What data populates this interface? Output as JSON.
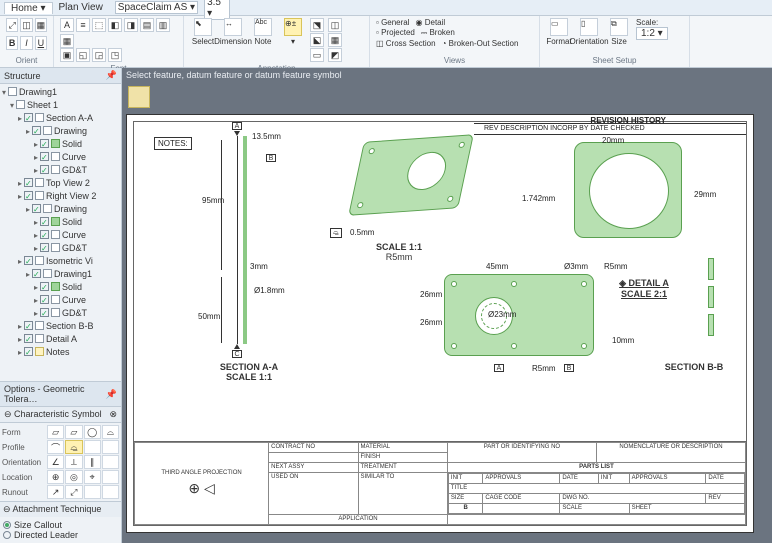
{
  "titlebar": {
    "home": "Home",
    "planview": "Plan View",
    "font_family": "SpaceClaim AS",
    "font_size": "3.5",
    "underline": "U"
  },
  "ribbon": {
    "groups": {
      "orient": "Orient",
      "font": "Font",
      "annotation": "Annotation",
      "views": "Views",
      "sheetsetup": "Sheet Setup"
    },
    "select": "Select",
    "dimension": "Dimension",
    "note": "Note",
    "abc": "Abc",
    "general": "General",
    "projected": "Projected",
    "crosssection": "Cross Section",
    "detail": "Detail",
    "broken": "Broken",
    "brokenout": "Broken-Out Section",
    "format": "Format",
    "orientation": "Orientation",
    "size": "Size",
    "scale_label": "Scale:",
    "scale_value": "1:2"
  },
  "structure": {
    "title": "Structure",
    "root": "Drawing1",
    "sheet": "Sheet 1",
    "items": [
      {
        "ind": 2,
        "label": "Section A-A",
        "icon": "doc"
      },
      {
        "ind": 3,
        "label": "Drawing",
        "icon": "doc"
      },
      {
        "ind": 4,
        "label": "Solid",
        "icon": "cube"
      },
      {
        "ind": 4,
        "label": "Curve",
        "icon": "doc"
      },
      {
        "ind": 4,
        "label": "GD&T",
        "icon": "doc"
      },
      {
        "ind": 2,
        "label": "Top View 2",
        "icon": "doc"
      },
      {
        "ind": 2,
        "label": "Right View 2",
        "icon": "doc"
      },
      {
        "ind": 3,
        "label": "Drawing",
        "icon": "doc"
      },
      {
        "ind": 4,
        "label": "Solid",
        "icon": "cube"
      },
      {
        "ind": 4,
        "label": "Curve",
        "icon": "doc"
      },
      {
        "ind": 4,
        "label": "GD&T",
        "icon": "doc"
      },
      {
        "ind": 2,
        "label": "Isometric Vi",
        "icon": "doc"
      },
      {
        "ind": 3,
        "label": "Drawing1",
        "icon": "doc"
      },
      {
        "ind": 4,
        "label": "Solid",
        "icon": "cube"
      },
      {
        "ind": 4,
        "label": "Curve",
        "icon": "doc"
      },
      {
        "ind": 4,
        "label": "GD&T",
        "icon": "doc"
      },
      {
        "ind": 2,
        "label": "Section B-B",
        "icon": "doc"
      },
      {
        "ind": 2,
        "label": "Detail A",
        "icon": "doc"
      },
      {
        "ind": 2,
        "label": "Notes",
        "icon": "noteico"
      }
    ]
  },
  "options": {
    "title": "Options - Geometric Tolera…",
    "section": "Characteristic Symbol",
    "rows": [
      "Form",
      "Profile",
      "Orientation",
      "Location",
      "Runout"
    ],
    "symbols": {
      "form": [
        "⏥",
        "▱",
        "◯",
        "⌓"
      ],
      "profile": [
        "⌒",
        "⌓̲",
        "",
        ""
      ],
      "orientation": [
        "∠",
        "⟂",
        "∥",
        ""
      ],
      "location": [
        "⊕",
        "◎",
        "⌖",
        ""
      ],
      "runout": [
        "↗",
        "⤢",
        "",
        ""
      ]
    },
    "attach_title": "Attachment Technique",
    "attach1": "Size Callout",
    "attach2": "Directed Leader"
  },
  "canvas": {
    "hint": "Select feature, datum feature or datum feature symbol",
    "notes_label": "NOTES:",
    "section_aa": "SECTION A-A",
    "section_aa_scale": "SCALE 1:1",
    "scale_11": "SCALE 1:1",
    "scale_11_rs": "R5mm",
    "detail_a": "DETAIL A",
    "detail_a_scale": "SCALE 2:1",
    "section_bb": "SECTION B-B",
    "rev_history": "REVISION HISTORY",
    "rev_cols": "REV       DESCRIPTION       INCORP BY     DATE     CHECKED",
    "dims": {
      "d135": "13.5mm",
      "d95": "95mm",
      "d50": "50mm",
      "d3": "3mm",
      "d18": "Ø1.8mm",
      "d05": "0.5mm",
      "d20": "20mm",
      "d1742": "1.742mm",
      "d29": "29mm",
      "d26a": "26mm",
      "d26b": "26mm",
      "d45": "45mm",
      "d23": "Ø23mm",
      "r5": "R5mm",
      "r5b": "R5mm",
      "d10": "10mm",
      "dphi3": "Ø3mm"
    },
    "markers": {
      "A": "A",
      "B": "B",
      "C": "C",
      "Bsq": "B"
    },
    "title_block": {
      "third_angle": "THIRD ANGLE PROJECTION",
      "application": "APPLICATION",
      "contract": "CONTRACT NO",
      "next_assy": "NEXT ASSY",
      "used_on": "USED ON",
      "material": "MATERIAL",
      "finish": "FINISH",
      "treatment": "TREATMENT",
      "similar_to": "SIMILAR TO",
      "part_or": "PART OR\nIDENTIFYING NO",
      "nomen": "NOMENCLATURE\nOR DESCRIPTION",
      "parts_list": "PARTS LIST",
      "init": "INIT",
      "approvals": "APPROVALS",
      "date": "DATE",
      "title": "TITLE",
      "size": "SIZE",
      "cage": "CAGE CODE",
      "dwg": "DWG NO.",
      "rev": "REV",
      "sizeB": "B",
      "scale": "SCALE",
      "sheet": "SHEET"
    }
  }
}
